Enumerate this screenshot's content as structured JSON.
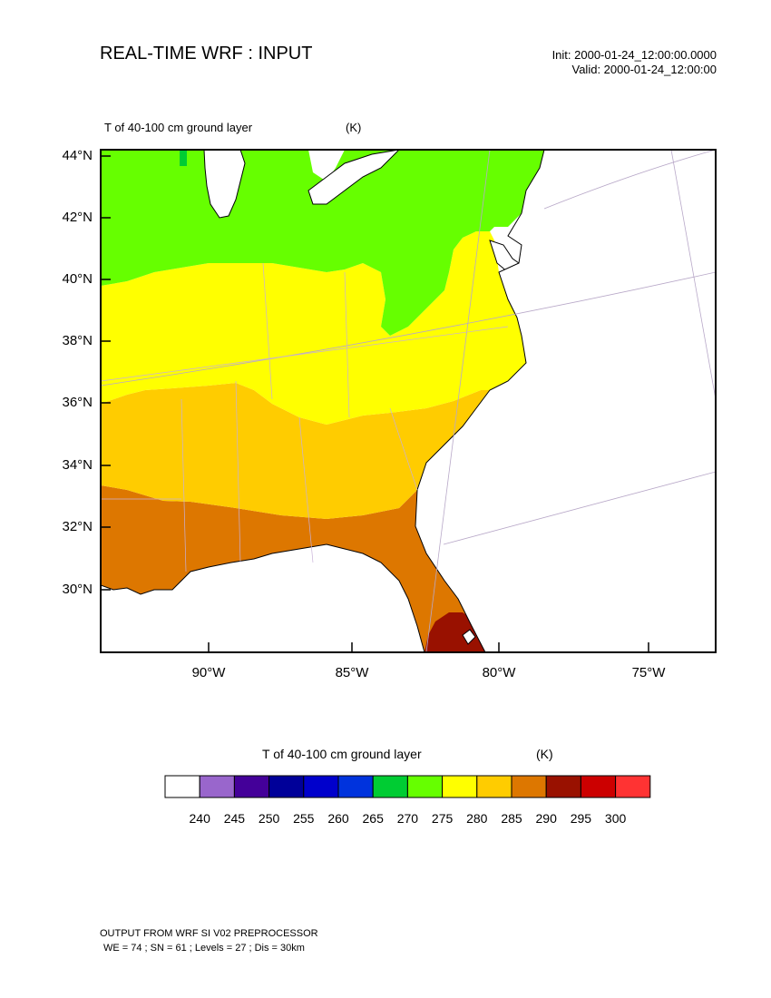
{
  "header": {
    "title": "REAL-TIME WRF : INPUT",
    "init": "Init: 2000-01-24_12:00:00.0000",
    "valid": "Valid: 2000-01-24_12:00:00"
  },
  "field": {
    "name": "T of 40-100 cm ground layer",
    "units": "(K)"
  },
  "map": {
    "lat_labels": [
      "44°N",
      "42°N",
      "40°N",
      "38°N",
      "36°N",
      "34°N",
      "32°N",
      "30°N"
    ],
    "lon_labels": [
      "90°W",
      "85°W",
      "80°W",
      "75°W"
    ]
  },
  "legend": {
    "title": "T of 40-100 cm ground layer",
    "units": "(K)",
    "labels": [
      "240",
      "245",
      "250",
      "255",
      "260",
      "265",
      "270",
      "275",
      "280",
      "285",
      "290",
      "295",
      "300"
    ],
    "colors": [
      "#ffffff",
      "#9966cc",
      "#440099",
      "#000099",
      "#0000cc",
      "#0033dd",
      "#00cc33",
      "#66ff00",
      "#ffff00",
      "#ffcc00",
      "#dd7700",
      "#991100",
      "#cc0000",
      "#ff3333"
    ]
  },
  "footer": {
    "line1": "OUTPUT FROM WRF SI V02 PREPROCESSOR",
    "line2": "WE = 74 ; SN = 61 ; Levels = 27 ; Dis = 30km"
  }
}
